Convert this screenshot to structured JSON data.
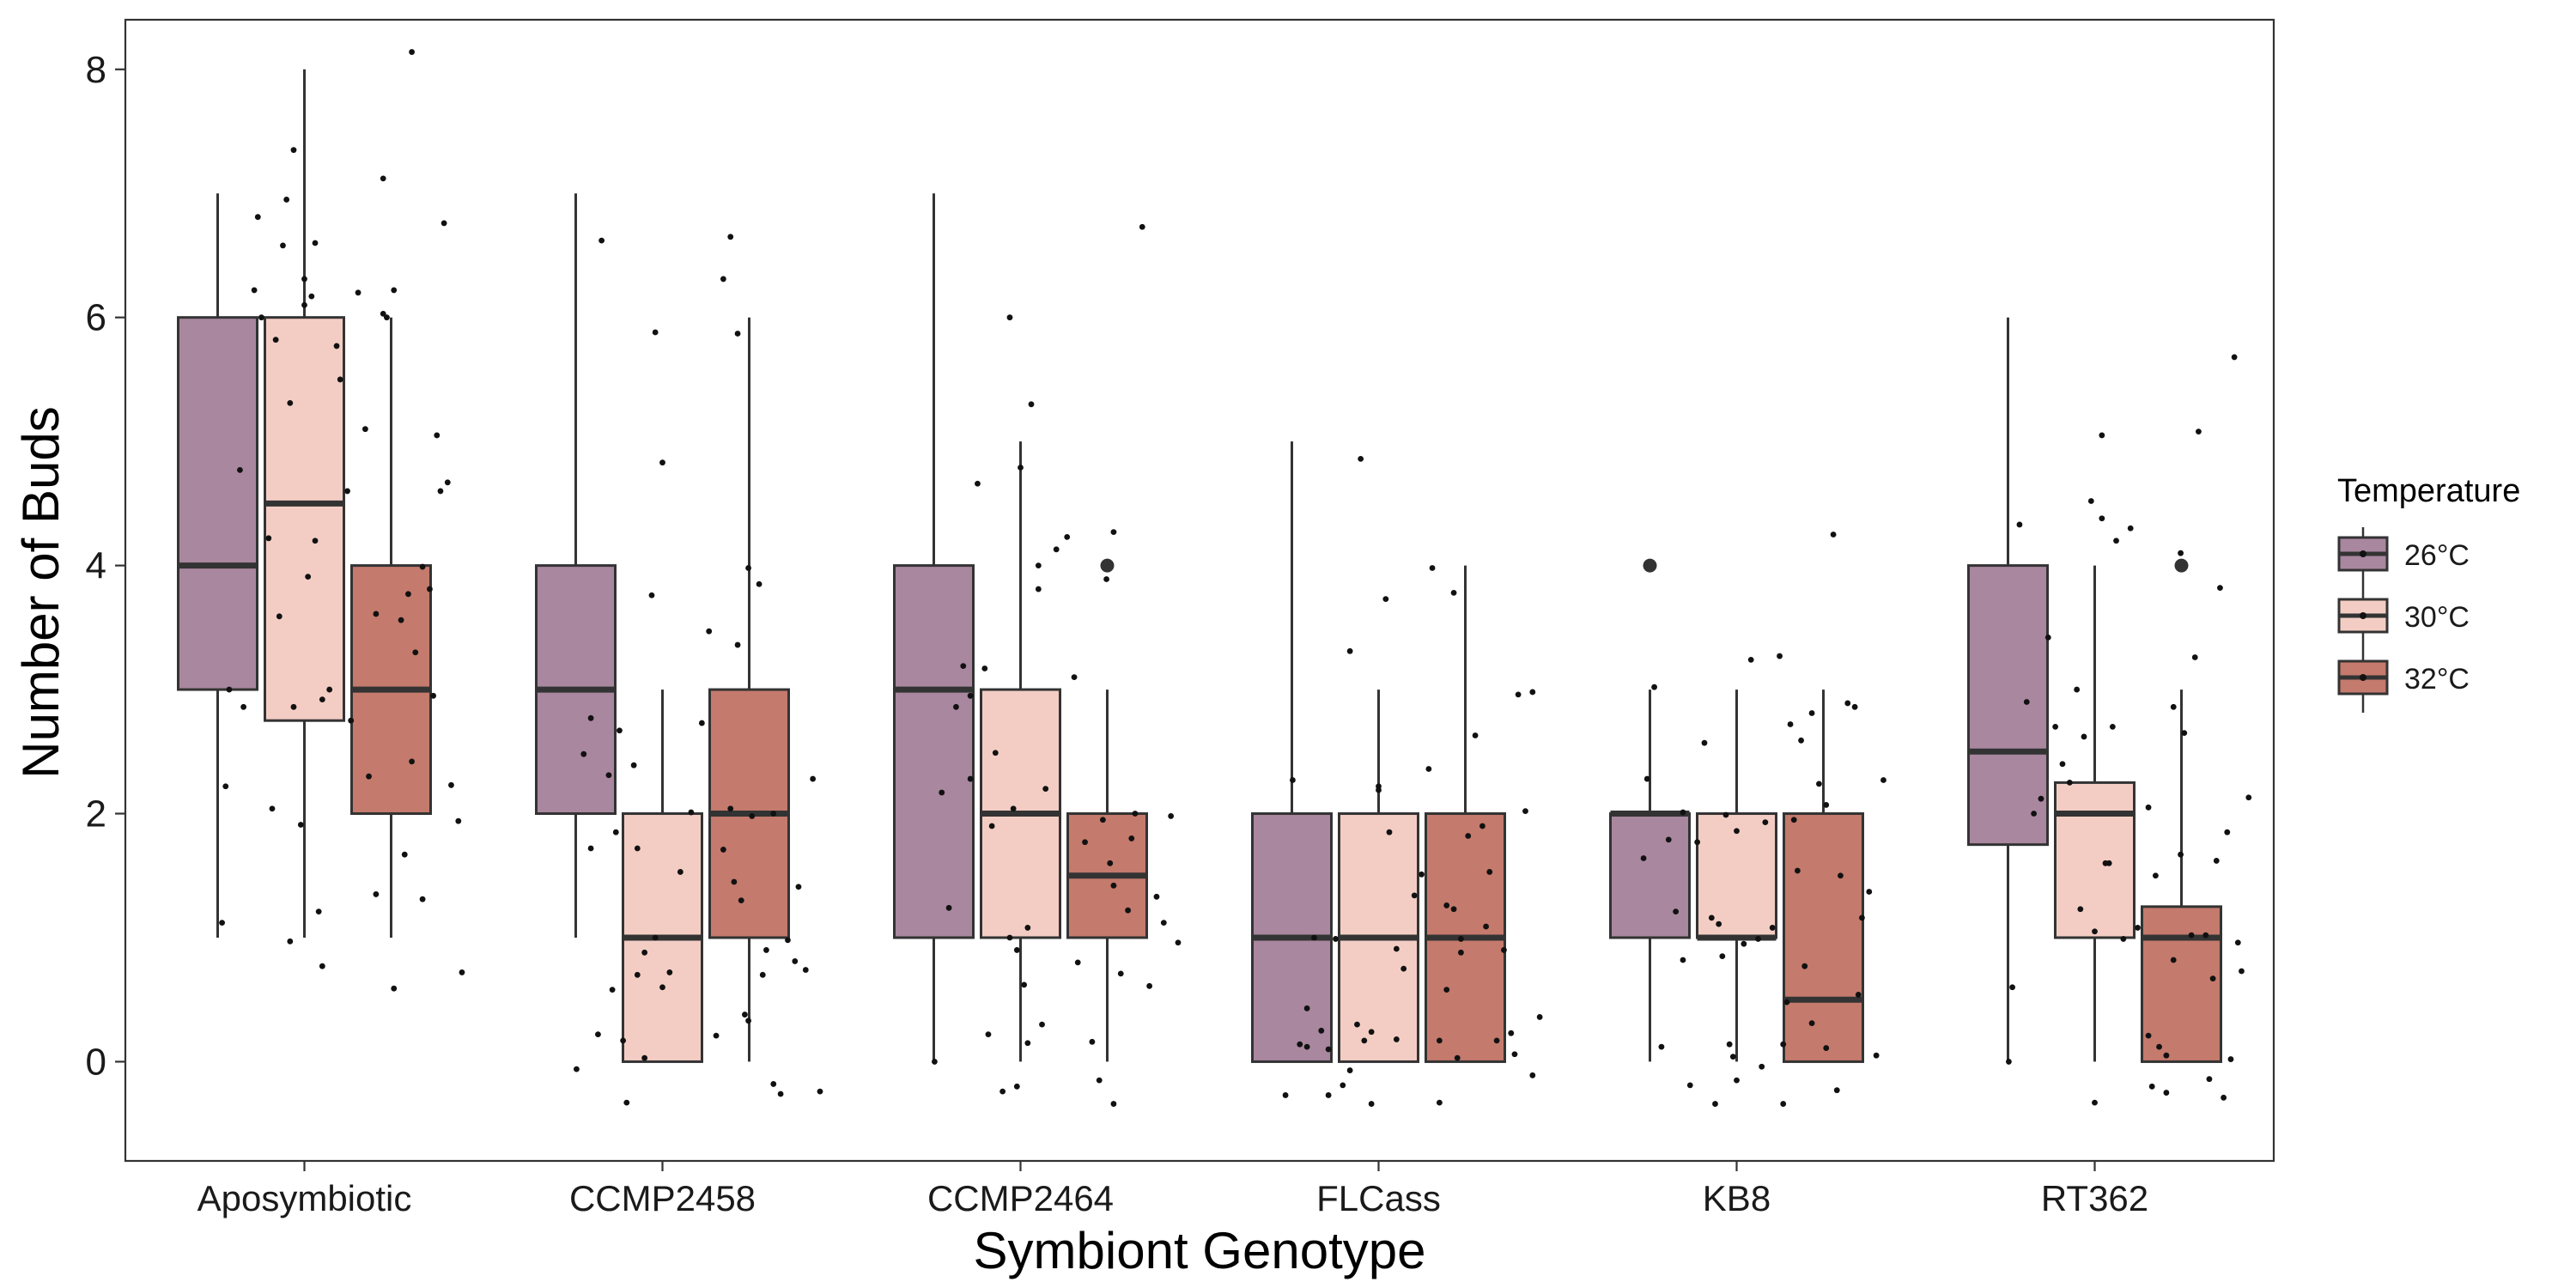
{
  "chart_data": {
    "type": "boxplot",
    "xlabel": "Symbiont Genotype",
    "ylabel": "Number of Buds",
    "ylim": [
      -0.8,
      8.4
    ],
    "yticks": [
      0,
      2,
      4,
      6,
      8
    ],
    "categories": [
      "Aposymbiotic",
      "CCMP2458",
      "CCMP2464",
      "FLCass",
      "KB8",
      "RT362"
    ],
    "grid": false,
    "legend": {
      "title": "Temperature",
      "position": "right",
      "entries": [
        "26°C",
        "30°C",
        "32°C"
      ]
    },
    "series": [
      {
        "name": "26°C",
        "color": "#a9879f",
        "boxes": [
          {
            "category": "Aposymbiotic",
            "whisker_low": 1,
            "q1": 3,
            "median": 4,
            "q3": 6,
            "whisker_high": 7,
            "outliers": []
          },
          {
            "category": "CCMP2458",
            "whisker_low": 1,
            "q1": 2,
            "median": 3,
            "q3": 4,
            "whisker_high": 7,
            "outliers": []
          },
          {
            "category": "CCMP2464",
            "whisker_low": 0,
            "q1": 1,
            "median": 3,
            "q3": 4,
            "whisker_high": 7,
            "outliers": []
          },
          {
            "category": "FLCass",
            "whisker_low": 0,
            "q1": 0,
            "median": 1,
            "q3": 2,
            "whisker_high": 5,
            "outliers": []
          },
          {
            "category": "KB8",
            "whisker_low": 0,
            "q1": 1,
            "median": 2,
            "q3": 2,
            "whisker_high": 3,
            "outliers": [
              4
            ]
          },
          {
            "category": "RT362",
            "whisker_low": 0,
            "q1": 1.75,
            "median": 2.5,
            "q3": 4,
            "whisker_high": 6,
            "outliers": []
          }
        ]
      },
      {
        "name": "30°C",
        "color": "#f3cdc4",
        "boxes": [
          {
            "category": "Aposymbiotic",
            "whisker_low": 1,
            "q1": 2.75,
            "median": 4.5,
            "q3": 6,
            "whisker_high": 8,
            "outliers": []
          },
          {
            "category": "CCMP2458",
            "whisker_low": 0,
            "q1": 0,
            "median": 1,
            "q3": 2,
            "whisker_high": 3,
            "outliers": []
          },
          {
            "category": "CCMP2464",
            "whisker_low": 0,
            "q1": 1,
            "median": 2,
            "q3": 3,
            "whisker_high": 5,
            "outliers": []
          },
          {
            "category": "FLCass",
            "whisker_low": 0,
            "q1": 0,
            "median": 1,
            "q3": 2,
            "whisker_high": 3,
            "outliers": []
          },
          {
            "category": "KB8",
            "whisker_low": 0,
            "q1": 1,
            "median": 1,
            "q3": 2,
            "whisker_high": 3,
            "outliers": []
          },
          {
            "category": "RT362",
            "whisker_low": 0,
            "q1": 1,
            "median": 2,
            "q3": 2.25,
            "whisker_high": 4,
            "outliers": []
          }
        ]
      },
      {
        "name": "32°C",
        "color": "#c47a6c",
        "boxes": [
          {
            "category": "Aposymbiotic",
            "whisker_low": 1,
            "q1": 2,
            "median": 3,
            "q3": 4,
            "whisker_high": 6,
            "outliers": []
          },
          {
            "category": "CCMP2458",
            "whisker_low": 0,
            "q1": 1,
            "median": 2,
            "q3": 3,
            "whisker_high": 6,
            "outliers": []
          },
          {
            "category": "CCMP2464",
            "whisker_low": 0,
            "q1": 1,
            "median": 1.5,
            "q3": 2,
            "whisker_high": 3,
            "outliers": [
              4
            ]
          },
          {
            "category": "FLCass",
            "whisker_low": 0,
            "q1": 0,
            "median": 1,
            "q3": 2,
            "whisker_high": 4,
            "outliers": []
          },
          {
            "category": "KB8",
            "whisker_low": 0,
            "q1": 0,
            "median": 0.5,
            "q3": 2,
            "whisker_high": 3,
            "outliers": []
          },
          {
            "category": "RT362",
            "whisker_low": 0,
            "q1": 0,
            "median": 1,
            "q3": 1.25,
            "whisker_high": 3,
            "outliers": [
              4
            ]
          }
        ]
      }
    ],
    "jitter_points": [
      [
        0.77,
        1.12
      ],
      [
        0.78,
        2.22
      ],
      [
        0.79,
        3.0
      ],
      [
        0.82,
        4.77
      ],
      [
        0.83,
        2.86
      ],
      [
        0.86,
        6.22
      ],
      [
        0.87,
        6.81
      ],
      [
        0.88,
        6.0
      ],
      [
        0.9,
        4.22
      ],
      [
        0.91,
        2.04
      ],
      [
        0.92,
        5.82
      ],
      [
        0.93,
        3.59
      ],
      [
        0.94,
        6.58
      ],
      [
        0.95,
        6.95
      ],
      [
        0.96,
        5.31
      ],
      [
        0.97,
        2.86
      ],
      [
        0.99,
        1.91
      ],
      [
        1.0,
        6.1
      ],
      [
        1.01,
        3.91
      ],
      [
        1.03,
        6.6
      ],
      [
        1.04,
        1.21
      ],
      [
        1.05,
        0.77
      ],
      [
        0.96,
        0.97
      ],
      [
        0.97,
        7.35
      ],
      [
        1.0,
        6.31
      ],
      [
        1.02,
        6.17
      ],
      [
        1.03,
        4.2
      ],
      [
        1.05,
        2.92
      ],
      [
        1.07,
        3.0
      ],
      [
        1.09,
        5.77
      ],
      [
        1.1,
        5.5
      ],
      [
        1.12,
        4.6
      ],
      [
        1.13,
        2.75
      ],
      [
        1.15,
        6.2
      ],
      [
        1.17,
        5.1
      ],
      [
        1.18,
        2.3
      ],
      [
        1.2,
        3.61
      ],
      [
        1.22,
        6.03
      ],
      [
        1.2,
        1.35
      ],
      [
        1.22,
        7.12
      ],
      [
        1.23,
        6.0
      ],
      [
        1.25,
        6.22
      ],
      [
        1.27,
        3.56
      ],
      [
        1.28,
        1.67
      ],
      [
        1.29,
        3.77
      ],
      [
        1.3,
        2.42
      ],
      [
        1.31,
        3.3
      ],
      [
        1.33,
        3.99
      ],
      [
        1.35,
        3.81
      ],
      [
        1.37,
        5.05
      ],
      [
        1.38,
        4.6
      ],
      [
        1.39,
        6.76
      ],
      [
        1.4,
        4.67
      ],
      [
        1.41,
        2.23
      ],
      [
        1.43,
        1.94
      ],
      [
        1.44,
        0.72
      ],
      [
        1.25,
        0.59
      ],
      [
        1.3,
        8.14
      ],
      [
        1.33,
        1.31
      ],
      [
        1.36,
        2.95
      ],
      [
        1.76,
        -0.06
      ],
      [
        1.78,
        2.48
      ],
      [
        1.8,
        2.77
      ],
      [
        1.82,
        0.22
      ],
      [
        1.83,
        6.62
      ],
      [
        1.85,
        2.31
      ],
      [
        1.87,
        1.85
      ],
      [
        1.88,
        2.67
      ],
      [
        1.89,
        0.17
      ],
      [
        1.9,
        -0.33
      ],
      [
        1.92,
        2.39
      ],
      [
        1.93,
        1.72
      ],
      [
        1.95,
        0.88
      ],
      [
        1.97,
        3.76
      ],
      [
        1.98,
        5.88
      ],
      [
        2.0,
        4.83
      ],
      [
        2.02,
        0.72
      ],
      [
        1.8,
        1.72
      ],
      [
        1.86,
        0.58
      ],
      [
        1.93,
        0.7
      ],
      [
        1.95,
        0.03
      ],
      [
        1.98,
        1.0
      ],
      [
        2.0,
        0.6
      ],
      [
        2.05,
        1.53
      ],
      [
        2.08,
        2.01
      ],
      [
        2.11,
        2.73
      ],
      [
        2.13,
        3.47
      ],
      [
        2.17,
        1.71
      ],
      [
        2.19,
        2.04
      ],
      [
        2.21,
        3.36
      ],
      [
        2.23,
        0.38
      ],
      [
        2.24,
        0.33
      ],
      [
        2.15,
        0.21
      ],
      [
        2.17,
        6.31
      ],
      [
        2.19,
        6.65
      ],
      [
        2.21,
        5.87
      ],
      [
        2.22,
        1.3
      ],
      [
        2.24,
        3.98
      ],
      [
        2.25,
        1.98
      ],
      [
        2.27,
        3.85
      ],
      [
        2.29,
        0.9
      ],
      [
        2.31,
        2.0
      ],
      [
        2.33,
        -0.26
      ],
      [
        2.35,
        0.98
      ],
      [
        2.37,
        0.81
      ],
      [
        2.38,
        1.41
      ],
      [
        2.4,
        0.74
      ],
      [
        2.42,
        2.28
      ],
      [
        2.44,
        -0.24
      ],
      [
        2.2,
        1.45
      ],
      [
        2.28,
        0.7
      ],
      [
        2.31,
        -0.18
      ],
      [
        2.76,
        0.0
      ],
      [
        2.78,
        2.17
      ],
      [
        2.8,
        1.24
      ],
      [
        2.82,
        2.86
      ],
      [
        2.84,
        3.19
      ],
      [
        2.86,
        2.28
      ],
      [
        2.88,
        4.66
      ],
      [
        2.9,
        3.17
      ],
      [
        2.91,
        0.22
      ],
      [
        2.93,
        2.49
      ],
      [
        2.95,
        -0.24
      ],
      [
        2.97,
        6.0
      ],
      [
        2.98,
        2.04
      ],
      [
        3.0,
        4.79
      ],
      [
        3.02,
        0.15
      ],
      [
        3.03,
        5.3
      ],
      [
        3.05,
        4.0
      ],
      [
        2.86,
        2.95
      ],
      [
        2.92,
        1.9
      ],
      [
        2.99,
        0.9
      ],
      [
        3.01,
        0.62
      ],
      [
        2.97,
        1.0
      ],
      [
        2.99,
        -0.2
      ],
      [
        3.02,
        1.08
      ],
      [
        3.05,
        3.81
      ],
      [
        3.07,
        2.2
      ],
      [
        3.1,
        4.13
      ],
      [
        3.13,
        4.23
      ],
      [
        3.15,
        3.1
      ],
      [
        3.18,
        1.77
      ],
      [
        3.2,
        0.16
      ],
      [
        3.22,
        -0.15
      ],
      [
        3.23,
        1.95
      ],
      [
        3.25,
        1.6
      ],
      [
        3.26,
        4.27
      ],
      [
        3.06,
        0.3
      ],
      [
        3.16,
        0.8
      ],
      [
        3.24,
        3.89
      ],
      [
        3.26,
        1.42
      ],
      [
        3.28,
        0.71
      ],
      [
        3.3,
        1.22
      ],
      [
        3.32,
        2.0
      ],
      [
        3.34,
        6.73
      ],
      [
        3.36,
        0.61
      ],
      [
        3.38,
        1.33
      ],
      [
        3.4,
        1.12
      ],
      [
        3.42,
        1.98
      ],
      [
        3.44,
        0.96
      ],
      [
        3.26,
        -0.34
      ],
      [
        3.31,
        1.8
      ],
      [
        3.74,
        -0.27
      ],
      [
        3.76,
        2.27
      ],
      [
        3.78,
        0.14
      ],
      [
        3.8,
        0.12
      ],
      [
        3.82,
        1.0
      ],
      [
        3.84,
        0.25
      ],
      [
        3.86,
        -0.27
      ],
      [
        3.88,
        0.99
      ],
      [
        3.9,
        -0.19
      ],
      [
        3.92,
        3.31
      ],
      [
        3.94,
        0.3
      ],
      [
        3.95,
        4.86
      ],
      [
        3.96,
        0.17
      ],
      [
        3.98,
        0.24
      ],
      [
        4.0,
        2.22
      ],
      [
        4.02,
        3.73
      ],
      [
        3.8,
        0.43
      ],
      [
        3.86,
        0.1
      ],
      [
        3.92,
        -0.07
      ],
      [
        3.98,
        -0.34
      ],
      [
        4.0,
        2.19
      ],
      [
        4.03,
        1.85
      ],
      [
        4.05,
        0.18
      ],
      [
        4.07,
        0.75
      ],
      [
        4.1,
        1.34
      ],
      [
        4.12,
        1.51
      ],
      [
        4.15,
        3.98
      ],
      [
        4.17,
        0.17
      ],
      [
        4.19,
        1.26
      ],
      [
        4.21,
        3.78
      ],
      [
        4.23,
        0.99
      ],
      [
        4.05,
        0.91
      ],
      [
        4.14,
        2.36
      ],
      [
        4.17,
        -0.33
      ],
      [
        4.19,
        0.58
      ],
      [
        4.21,
        1.23
      ],
      [
        4.23,
        0.88
      ],
      [
        4.25,
        1.82
      ],
      [
        4.27,
        2.63
      ],
      [
        4.29,
        1.9
      ],
      [
        4.31,
        1.53
      ],
      [
        4.33,
        0.17
      ],
      [
        4.35,
        0.9
      ],
      [
        4.37,
        0.23
      ],
      [
        4.39,
        2.96
      ],
      [
        4.41,
        2.02
      ],
      [
        4.43,
        2.98
      ],
      [
        4.45,
        0.36
      ],
      [
        4.22,
        0.03
      ],
      [
        4.3,
        1.09
      ],
      [
        4.38,
        0.06
      ],
      [
        4.43,
        -0.11
      ],
      [
        4.74,
        1.64
      ],
      [
        4.75,
        2.28
      ],
      [
        4.77,
        3.02
      ],
      [
        4.79,
        0.12
      ],
      [
        4.81,
        1.79
      ],
      [
        4.83,
        1.21
      ],
      [
        4.85,
        0.82
      ],
      [
        4.87,
        -0.19
      ],
      [
        4.89,
        1.77
      ],
      [
        4.91,
        2.57
      ],
      [
        4.93,
        1.16
      ],
      [
        4.95,
        1.11
      ],
      [
        4.97,
        1.99
      ],
      [
        4.99,
        0.04
      ],
      [
        4.85,
        2.01
      ],
      [
        4.94,
        -0.34
      ],
      [
        4.96,
        0.85
      ],
      [
        4.98,
        0.14
      ],
      [
        5.0,
        1.86
      ],
      [
        5.02,
        0.95
      ],
      [
        5.04,
        3.24
      ],
      [
        5.06,
        0.99
      ],
      [
        5.08,
        1.93
      ],
      [
        5.1,
        1.08
      ],
      [
        5.12,
        3.27
      ],
      [
        5.14,
        0.48
      ],
      [
        5.16,
        1.95
      ],
      [
        5.18,
        2.59
      ],
      [
        5.0,
        -0.15
      ],
      [
        5.07,
        -0.04
      ],
      [
        5.13,
        -0.34
      ],
      [
        5.13,
        0.14
      ],
      [
        5.15,
        2.72
      ],
      [
        5.17,
        1.54
      ],
      [
        5.19,
        0.77
      ],
      [
        5.21,
        2.81
      ],
      [
        5.23,
        2.24
      ],
      [
        5.25,
        0.11
      ],
      [
        5.27,
        4.25
      ],
      [
        5.29,
        1.5
      ],
      [
        5.31,
        2.89
      ],
      [
        5.33,
        2.86
      ],
      [
        5.35,
        1.16
      ],
      [
        5.37,
        1.37
      ],
      [
        5.39,
        0.05
      ],
      [
        5.41,
        2.27
      ],
      [
        5.21,
        0.31
      ],
      [
        5.28,
        -0.23
      ],
      [
        5.34,
        0.54
      ],
      [
        5.25,
        2.07
      ],
      [
        5.76,
        0.0
      ],
      [
        5.77,
        0.6
      ],
      [
        5.79,
        4.33
      ],
      [
        5.81,
        2.9
      ],
      [
        5.83,
        2.0
      ],
      [
        5.85,
        2.12
      ],
      [
        5.87,
        3.42
      ],
      [
        5.89,
        2.7
      ],
      [
        5.91,
        2.4
      ],
      [
        5.93,
        2.25
      ],
      [
        5.95,
        3.0
      ],
      [
        5.97,
        2.62
      ],
      [
        6.0,
        1.05
      ],
      [
        6.02,
        5.05
      ],
      [
        6.04,
        1.6
      ],
      [
        5.99,
        4.52
      ],
      [
        5.96,
        1.23
      ],
      [
        6.0,
        -0.33
      ],
      [
        6.02,
        4.38
      ],
      [
        6.05,
        2.7
      ],
      [
        6.08,
        0.99
      ],
      [
        6.1,
        4.3
      ],
      [
        6.12,
        1.08
      ],
      [
        6.15,
        2.05
      ],
      [
        6.18,
        0.12
      ],
      [
        6.2,
        -0.25
      ],
      [
        6.22,
        2.86
      ],
      [
        6.24,
        1.67
      ],
      [
        6.06,
        4.2
      ],
      [
        6.16,
        -0.2
      ],
      [
        6.03,
        1.6
      ],
      [
        6.15,
        0.21
      ],
      [
        6.17,
        1.5
      ],
      [
        6.2,
        0.05
      ],
      [
        6.22,
        0.82
      ],
      [
        6.25,
        2.65
      ],
      [
        6.27,
        1.02
      ],
      [
        6.29,
        5.08
      ],
      [
        6.31,
        1.02
      ],
      [
        6.33,
        0.67
      ],
      [
        6.35,
        3.82
      ],
      [
        6.37,
        1.85
      ],
      [
        6.39,
        5.68
      ],
      [
        6.41,
        0.73
      ],
      [
        6.43,
        2.13
      ],
      [
        6.28,
        3.26
      ],
      [
        6.32,
        -0.14
      ],
      [
        6.36,
        -0.29
      ],
      [
        6.4,
        0.96
      ],
      [
        6.24,
        4.1
      ],
      [
        6.34,
        1.62
      ],
      [
        6.38,
        0.02
      ]
    ]
  }
}
